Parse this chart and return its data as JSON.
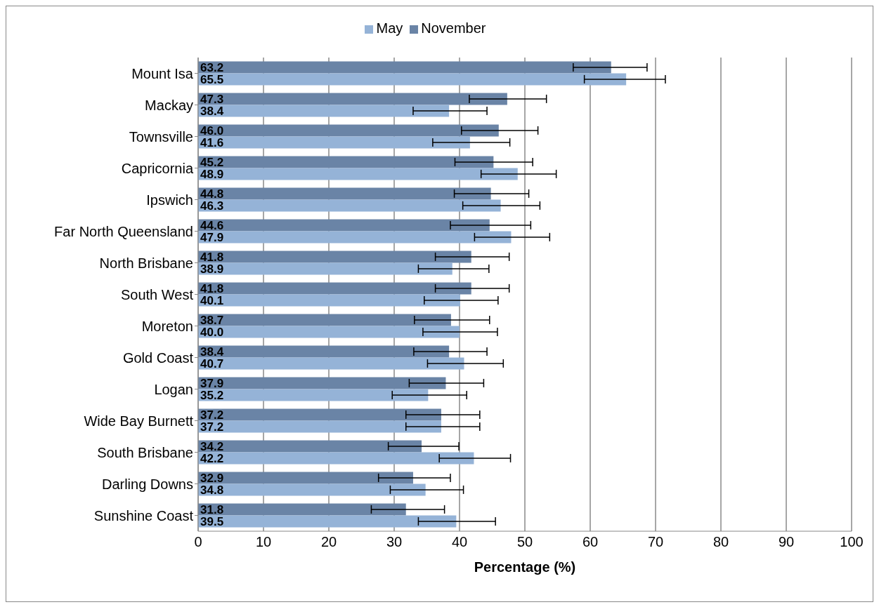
{
  "chart_data": {
    "type": "bar",
    "orientation": "horizontal",
    "xlabel": "Percentage (%)",
    "categories": [
      "Mount Isa",
      "Mackay",
      "Townsville",
      "Capricornia",
      "Ipswich",
      "Far North Queensland",
      "North Brisbane",
      "South West",
      "Moreton",
      "Gold Coast",
      "Logan",
      "Wide Bay Burnett",
      "South Brisbane",
      "Darling Downs",
      "Sunshine Coast"
    ],
    "series": [
      {
        "name": "November",
        "color": "#6a84a6",
        "values": [
          63.2,
          47.3,
          46.0,
          45.2,
          44.8,
          44.6,
          41.8,
          41.8,
          38.7,
          38.4,
          37.9,
          37.2,
          34.2,
          32.9,
          31.8
        ],
        "value_labels": [
          "63.2",
          "47.3",
          "46.0",
          "45.2",
          "44.8",
          "44.6",
          "41.8",
          "41.8",
          "38.7",
          "38.4",
          "37.9",
          "37.2",
          "34.2",
          "32.9",
          "31.8"
        ],
        "errors": [
          [
            57.4,
            68.7
          ],
          [
            41.5,
            53.3
          ],
          [
            40.3,
            52.0
          ],
          [
            39.3,
            51.2
          ],
          [
            39.2,
            50.6
          ],
          [
            38.6,
            50.9
          ],
          [
            36.3,
            47.6
          ],
          [
            36.3,
            47.6
          ],
          [
            33.1,
            44.6
          ],
          [
            33.0,
            44.2
          ],
          [
            32.3,
            43.7
          ],
          [
            31.8,
            43.1
          ],
          [
            29.1,
            39.9
          ],
          [
            27.6,
            38.6
          ],
          [
            26.5,
            37.7
          ]
        ]
      },
      {
        "name": "May",
        "color": "#95b3d7",
        "values": [
          65.5,
          38.4,
          41.6,
          48.9,
          46.3,
          47.9,
          38.9,
          40.1,
          40.0,
          40.7,
          35.2,
          37.2,
          42.2,
          34.8,
          39.5
        ],
        "value_labels": [
          "65.5",
          "38.4",
          "41.6",
          "48.9",
          "46.3",
          "47.9",
          "38.9",
          "40.1",
          "40.0",
          "40.7",
          "35.2",
          "37.2",
          "42.2",
          "34.8",
          "39.5"
        ],
        "errors": [
          [
            59.1,
            71.5
          ],
          [
            32.9,
            44.2
          ],
          [
            35.9,
            47.7
          ],
          [
            43.3,
            54.8
          ],
          [
            40.5,
            52.3
          ],
          [
            42.3,
            53.8
          ],
          [
            33.7,
            44.5
          ],
          [
            34.6,
            45.9
          ],
          [
            34.4,
            45.8
          ],
          [
            35.1,
            46.7
          ],
          [
            29.7,
            41.1
          ],
          [
            31.8,
            43.1
          ],
          [
            36.9,
            47.8
          ],
          [
            29.4,
            40.6
          ],
          [
            33.7,
            45.5
          ]
        ]
      }
    ],
    "xlim": [
      0,
      100
    ],
    "xticks": [
      0,
      10,
      20,
      30,
      40,
      50,
      60,
      70,
      80,
      90,
      100
    ],
    "grid": "x",
    "legend": "top"
  }
}
